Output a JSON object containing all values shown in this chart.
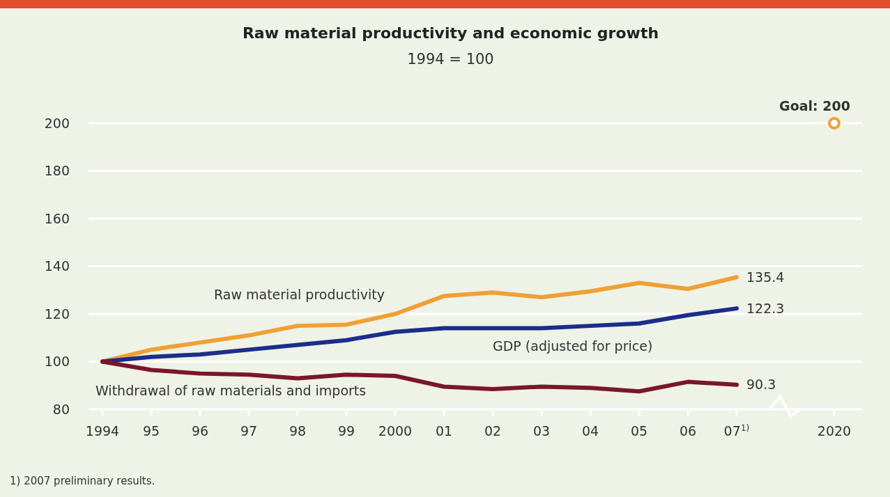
{
  "chart_data": {
    "type": "line",
    "title": "Raw material productivity and economic growth",
    "subtitle": "1994 = 100",
    "categories": [
      "1994",
      "95",
      "96",
      "97",
      "98",
      "99",
      "2000",
      "01",
      "02",
      "03",
      "04",
      "05",
      "06",
      "07$^{1)}$",
      null,
      "2020"
    ],
    "series": [
      {
        "name": "Raw material productivity",
        "color": "#f0a033",
        "values": [
          100,
          105,
          108,
          111,
          115,
          115.5,
          120,
          127.5,
          129,
          127,
          129.5,
          133,
          130.5,
          135.4,
          null,
          null
        ],
        "value_labels": [
          null,
          null,
          null,
          null,
          null,
          null,
          null,
          null,
          null,
          null,
          null,
          null,
          null,
          "135.4",
          null,
          null
        ]
      },
      {
        "name": "GDP (adjusted for price)",
        "color": "#1b2c8a",
        "values": [
          100,
          102,
          103,
          105,
          107,
          109,
          112.5,
          114,
          114,
          114,
          115,
          116,
          119.5,
          122.3,
          null,
          null
        ],
        "value_labels": [
          null,
          null,
          null,
          null,
          null,
          null,
          null,
          null,
          null,
          null,
          null,
          null,
          null,
          "122.3",
          null,
          null
        ]
      },
      {
        "name": "Withdrawal of raw materials and imports",
        "color": "#7a1628",
        "values": [
          100,
          96.5,
          95,
          94.5,
          93,
          94.5,
          94,
          89.5,
          88.5,
          89.5,
          89,
          87.5,
          91.5,
          90.3,
          null,
          null
        ],
        "value_labels": [
          null,
          null,
          null,
          null,
          null,
          null,
          null,
          null,
          null,
          null,
          null,
          null,
          null,
          "90.3",
          null,
          null
        ]
      },
      {
        "type": "scatter",
        "marker": "circle",
        "color": "#f0a033",
        "values": [
          null,
          null,
          null,
          null,
          null,
          null,
          null,
          null,
          null,
          null,
          null,
          null,
          null,
          null,
          null,
          200
        ]
      }
    ],
    "ylim": [
      80,
      200
    ],
    "yticks": [
      80,
      100,
      120,
      140,
      160,
      180,
      200
    ],
    "grid": "y",
    "line_style": "solid",
    "annotations": [
      {
        "text": "Goal: 200",
        "x": "2020",
        "y": 200
      },
      "1) 2007 preliminary results."
    ]
  }
}
